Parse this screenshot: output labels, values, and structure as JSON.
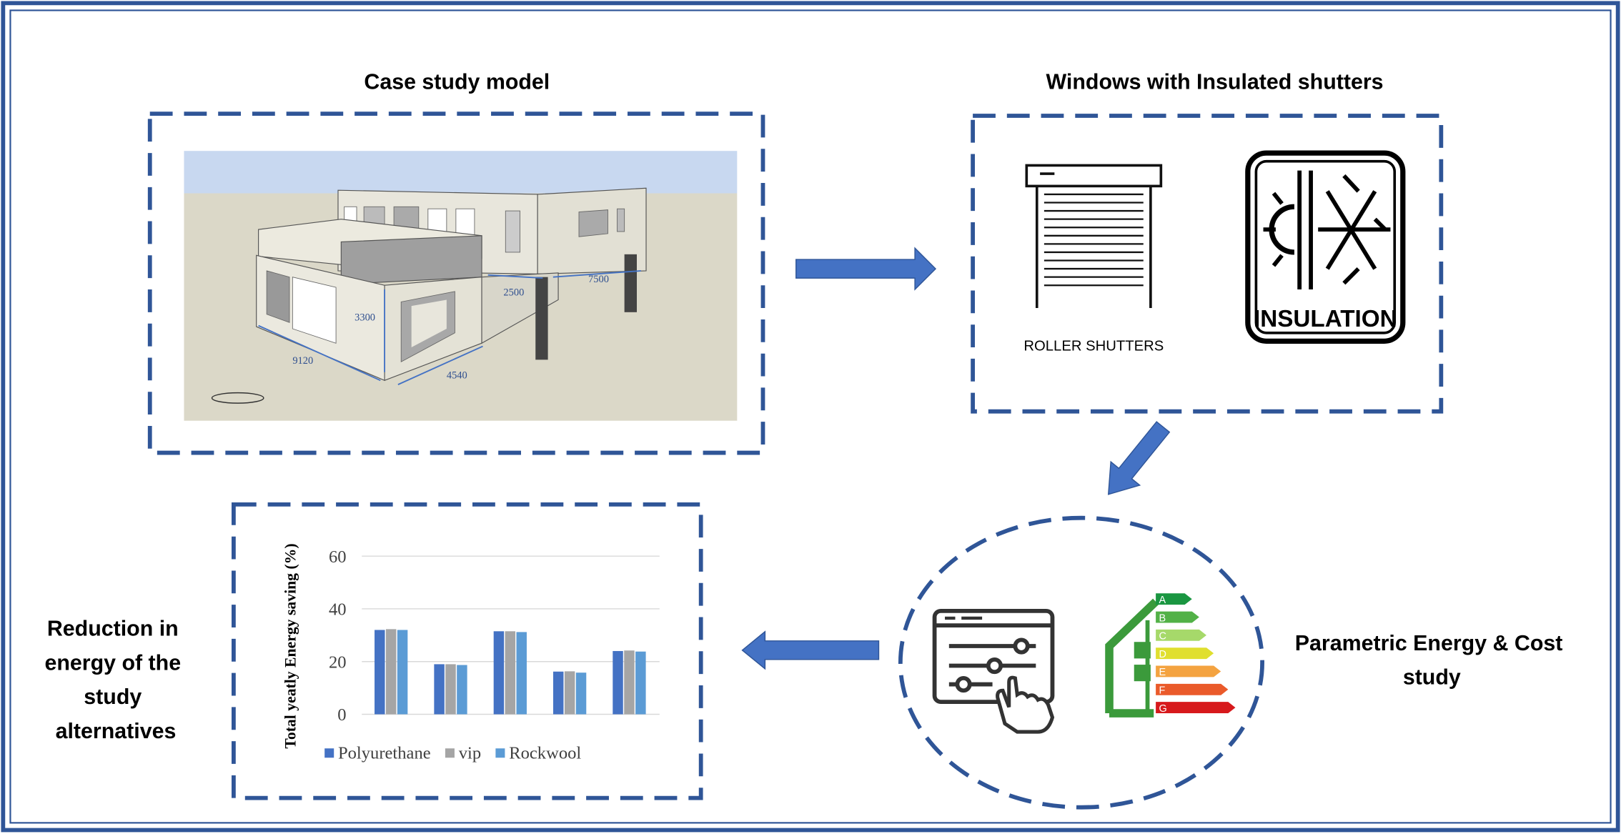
{
  "panels": {
    "case_study": {
      "title": "Case study model",
      "dimensions": [
        "9120",
        "3300",
        "4540",
        "2500",
        "7500"
      ]
    },
    "windows": {
      "title": "Windows with Insulated shutters",
      "labels": [
        "ROLLER SHUTTERS",
        "INSULATION"
      ]
    },
    "parametric": {
      "title_lines": [
        "Parametric Energy & Cost",
        "study"
      ],
      "energy_classes": [
        "A",
        "B",
        "C",
        "D",
        "E",
        "F",
        "G"
      ]
    },
    "reduction": {
      "title_lines": [
        "Reduction in",
        "energy of the",
        "study",
        "alternatives"
      ]
    }
  },
  "chart_data": {
    "type": "bar",
    "y_label": "Total yeatly Energy saving  (%)",
    "categories": [
      null,
      null,
      null,
      null,
      null
    ],
    "series": [
      {
        "name": "Polyurethane",
        "color": "#4472c4",
        "values": [
          32,
          19,
          31.5,
          16.2,
          24
        ]
      },
      {
        "name": "vip",
        "color": "#a5a5a5",
        "values": [
          32.3,
          19,
          31.5,
          16.3,
          24.2
        ]
      },
      {
        "name": "Rockwool",
        "color": "#5b9bd5",
        "values": [
          32,
          18.7,
          31.2,
          15.8,
          23.8
        ]
      }
    ],
    "ylim": [
      0,
      60
    ],
    "yticks": [
      0,
      20,
      40,
      60
    ],
    "grid": true
  }
}
